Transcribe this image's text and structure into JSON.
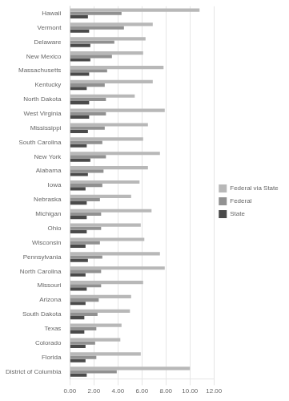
{
  "chart_data": {
    "type": "bar",
    "orientation": "horizontal",
    "categories": [
      "Hawaii",
      "Vermont",
      "Delaware",
      "New Mexico",
      "Massachusetts",
      "Kentucky",
      "North Dakota",
      "West Virginia",
      "Mississippi",
      "South Carolina",
      "New York",
      "Alabama",
      "Iowa",
      "Nebraska",
      "Michigan",
      "Ohio",
      "Wisconsin",
      "Pennsylvania",
      "North Carolina",
      "Missouri",
      "Arizona",
      "South Dakota",
      "Texas",
      "Colorado",
      "Florida",
      "District of Columbia"
    ],
    "series": [
      {
        "name": "Federal via State",
        "color": "#b8b8b8",
        "values": [
          10.8,
          6.9,
          6.3,
          6.1,
          7.8,
          6.9,
          5.4,
          7.9,
          6.5,
          6.1,
          7.5,
          6.5,
          5.8,
          5.1,
          6.8,
          5.9,
          6.2,
          7.5,
          7.9,
          6.1,
          5.1,
          5.0,
          4.3,
          4.2,
          5.9,
          10.0
        ]
      },
      {
        "name": "Federal",
        "color": "#919191",
        "values": [
          4.3,
          4.5,
          3.7,
          3.5,
          3.1,
          2.9,
          3.0,
          3.0,
          2.9,
          2.7,
          3.0,
          2.8,
          2.7,
          2.5,
          2.6,
          2.6,
          2.5,
          2.7,
          2.6,
          2.6,
          2.4,
          2.3,
          2.2,
          2.1,
          2.2,
          3.9
        ]
      },
      {
        "name": "State",
        "color": "#4a4a4a",
        "values": [
          1.5,
          1.6,
          1.7,
          1.7,
          1.6,
          1.4,
          1.6,
          1.6,
          1.5,
          1.4,
          1.7,
          1.5,
          1.3,
          1.4,
          1.4,
          1.4,
          1.3,
          1.5,
          1.3,
          1.4,
          1.3,
          1.2,
          1.2,
          1.3,
          1.3,
          1.4
        ]
      }
    ],
    "xlim": [
      0,
      12.0
    ],
    "xticks": [
      {
        "value": 0.0,
        "label": "0.00"
      },
      {
        "value": 2.0,
        "label": "2.00"
      },
      {
        "value": 4.0,
        "label": "4.00"
      },
      {
        "value": 6.0,
        "label": "6.00"
      },
      {
        "value": 8.0,
        "label": "8.00"
      },
      {
        "value": 10.0,
        "label": "10.00"
      },
      {
        "value": 12.0,
        "label": "12.00"
      }
    ],
    "grid": true,
    "legend": "right"
  }
}
